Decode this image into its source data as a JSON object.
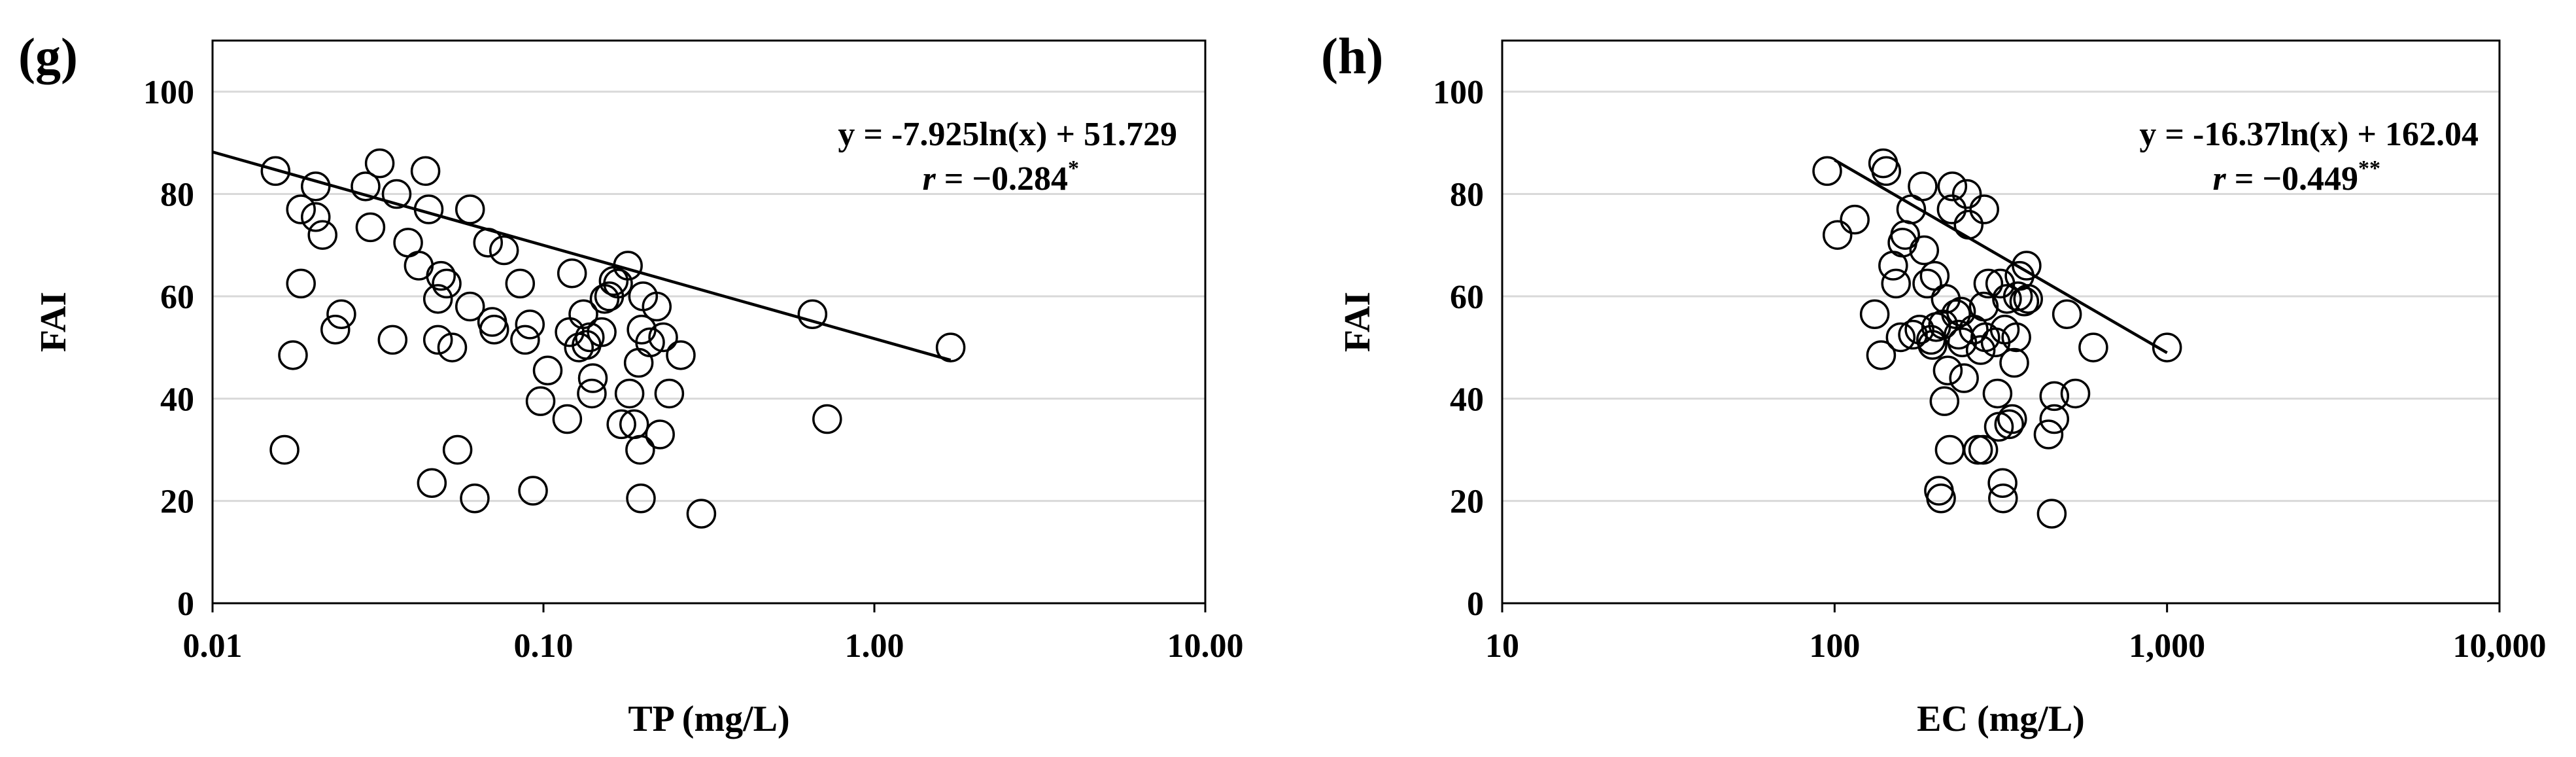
{
  "chart_data": [
    {
      "panel_label": "(g)",
      "type": "scatter",
      "xlabel": "TP (mg/L)",
      "ylabel": "FAI",
      "x_scale": "log",
      "xlim": [
        0.01,
        10
      ],
      "ylim": [
        0,
        110
      ],
      "x_ticks": [
        0.01,
        0.1,
        1,
        10
      ],
      "x_tick_labels": [
        "0.01",
        "0.10",
        "1.00",
        "10.00"
      ],
      "y_ticks": [
        0,
        20,
        40,
        60,
        80,
        100
      ],
      "y_tick_labels": [
        "0",
        "20",
        "40",
        "60",
        "80",
        "100"
      ],
      "grid": true,
      "equation": "y = -7.925ln(x) + 51.729",
      "r_label": "r",
      "r_value": " = −0.284",
      "r_sig": "*",
      "trendline": {
        "a": -7.925,
        "b": 51.729,
        "x_range": [
          0.01,
          1.7
        ]
      },
      "points": [
        [
          0.0155,
          84.5
        ],
        [
          0.0165,
          30
        ],
        [
          0.0175,
          48.5
        ],
        [
          0.0185,
          62.5
        ],
        [
          0.0185,
          77
        ],
        [
          0.0205,
          81.5
        ],
        [
          0.0205,
          75.5
        ],
        [
          0.0215,
          72
        ],
        [
          0.0235,
          53.5
        ],
        [
          0.0245,
          56.5
        ],
        [
          0.029,
          81.5
        ],
        [
          0.03,
          73.5
        ],
        [
          0.032,
          86
        ],
        [
          0.035,
          51.5
        ],
        [
          0.036,
          80
        ],
        [
          0.039,
          70.5
        ],
        [
          0.042,
          66
        ],
        [
          0.044,
          84.5
        ],
        [
          0.045,
          77
        ],
        [
          0.046,
          23.5
        ],
        [
          0.048,
          51.5
        ],
        [
          0.048,
          59.5
        ],
        [
          0.049,
          64
        ],
        [
          0.051,
          62.5
        ],
        [
          0.053,
          50
        ],
        [
          0.055,
          30
        ],
        [
          0.06,
          58
        ],
        [
          0.06,
          77
        ],
        [
          0.062,
          20.5
        ],
        [
          0.068,
          70.5
        ],
        [
          0.07,
          55
        ],
        [
          0.071,
          53.5
        ],
        [
          0.076,
          69
        ],
        [
          0.085,
          62.5
        ],
        [
          0.088,
          51.5
        ],
        [
          0.091,
          54.5
        ],
        [
          0.093,
          22
        ],
        [
          0.098,
          39.5
        ],
        [
          0.103,
          45.5
        ],
        [
          0.118,
          36
        ],
        [
          0.12,
          53
        ],
        [
          0.122,
          64.5
        ],
        [
          0.128,
          50
        ],
        [
          0.132,
          56.5
        ],
        [
          0.135,
          50.5
        ],
        [
          0.138,
          52
        ],
        [
          0.14,
          41
        ],
        [
          0.141,
          44
        ],
        [
          0.15,
          53
        ],
        [
          0.153,
          59.5
        ],
        [
          0.158,
          60
        ],
        [
          0.163,
          63
        ],
        [
          0.168,
          62.5
        ],
        [
          0.172,
          35
        ],
        [
          0.18,
          66
        ],
        [
          0.182,
          41
        ],
        [
          0.188,
          35
        ],
        [
          0.194,
          47
        ],
        [
          0.196,
          30
        ],
        [
          0.197,
          20.5
        ],
        [
          0.198,
          53.5
        ],
        [
          0.2,
          60
        ],
        [
          0.21,
          51
        ],
        [
          0.22,
          58
        ],
        [
          0.225,
          33
        ],
        [
          0.23,
          52
        ],
        [
          0.24,
          41
        ],
        [
          0.26,
          48.5
        ],
        [
          0.3,
          17.5
        ],
        [
          0.65,
          56.5
        ],
        [
          0.72,
          36
        ],
        [
          1.7,
          50
        ]
      ]
    },
    {
      "panel_label": "(h)",
      "type": "scatter",
      "xlabel": "EC (mg/L)",
      "ylabel": "FAI",
      "x_scale": "log",
      "xlim": [
        10,
        10000
      ],
      "ylim": [
        0,
        110
      ],
      "x_ticks": [
        10,
        100,
        1000,
        10000
      ],
      "x_tick_labels": [
        "10",
        "100",
        "1,000",
        "10,000"
      ],
      "y_ticks": [
        0,
        20,
        40,
        60,
        80,
        100
      ],
      "y_tick_labels": [
        "0",
        "20",
        "40",
        "60",
        "80",
        "100"
      ],
      "grid": true,
      "equation": "y = -16.37ln(x) + 162.04",
      "r_label": "r",
      "r_value": " = −0.449",
      "r_sig": "**",
      "trendline": {
        "a": -16.37,
        "b": 162.04,
        "x_range": [
          100,
          1000
        ]
      },
      "points": [
        [
          95,
          84.5
        ],
        [
          102,
          72
        ],
        [
          115,
          75
        ],
        [
          132,
          56.5
        ],
        [
          138,
          48.5
        ],
        [
          140,
          86
        ],
        [
          143,
          84.5
        ],
        [
          150,
          66
        ],
        [
          153,
          62.5
        ],
        [
          158,
          52
        ],
        [
          160,
          70.5
        ],
        [
          163,
          72
        ],
        [
          170,
          77
        ],
        [
          172,
          52.5
        ],
        [
          180,
          53.5
        ],
        [
          184,
          81.5
        ],
        [
          186,
          69
        ],
        [
          190,
          62.5
        ],
        [
          195,
          51.5
        ],
        [
          197,
          50.5
        ],
        [
          200,
          64
        ],
        [
          202,
          54
        ],
        [
          206,
          22
        ],
        [
          209,
          20.5
        ],
        [
          212,
          54.5
        ],
        [
          214,
          39.5
        ],
        [
          216,
          59.5
        ],
        [
          219,
          45.5
        ],
        [
          222,
          30
        ],
        [
          225,
          77
        ],
        [
          226,
          81.5
        ],
        [
          232,
          56.5
        ],
        [
          236,
          52.5
        ],
        [
          240,
          57
        ],
        [
          242,
          51
        ],
        [
          245,
          44
        ],
        [
          250,
          80
        ],
        [
          253,
          74
        ],
        [
          262,
          53.5
        ],
        [
          270,
          30
        ],
        [
          275,
          49.5
        ],
        [
          280,
          30
        ],
        [
          281,
          58
        ],
        [
          282,
          77
        ],
        [
          284,
          52
        ],
        [
          290,
          62.5
        ],
        [
          305,
          51
        ],
        [
          309,
          41
        ],
        [
          312,
          34.5
        ],
        [
          315,
          62.5
        ],
        [
          320,
          23.5
        ],
        [
          321,
          20.5
        ],
        [
          325,
          53.5
        ],
        [
          330,
          59.5
        ],
        [
          335,
          35
        ],
        [
          342,
          36
        ],
        [
          347,
          47
        ],
        [
          352,
          52
        ],
        [
          356,
          60
        ],
        [
          360,
          64
        ],
        [
          372,
          59
        ],
        [
          378,
          66
        ],
        [
          382,
          59.5
        ],
        [
          440,
          33
        ],
        [
          450,
          17.5
        ],
        [
          458,
          36
        ],
        [
          458,
          40.5
        ],
        [
          500,
          56.5
        ],
        [
          530,
          41
        ],
        [
          600,
          50
        ],
        [
          1000,
          50
        ]
      ]
    }
  ]
}
